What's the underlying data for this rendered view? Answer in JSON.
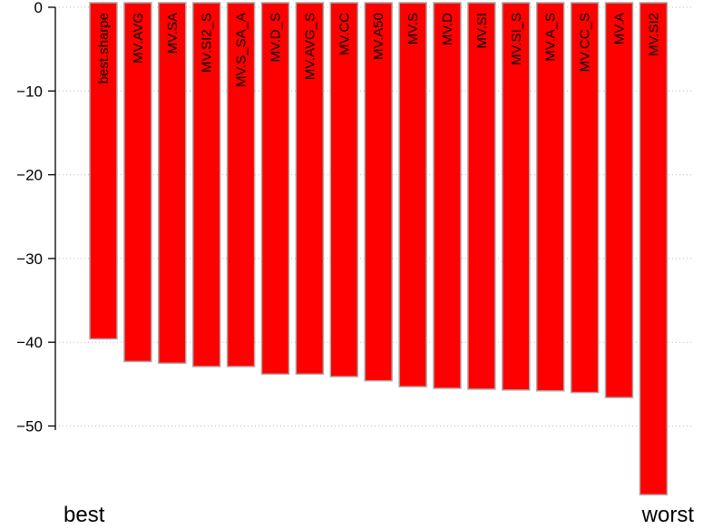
{
  "chart_data": {
    "type": "bar",
    "orientation": "vertical",
    "categories": [
      "best.sharpe",
      "MV.AVG",
      "MV.SA",
      "MV.SI2_S",
      "MV.S_SA_A",
      "MV.D_S",
      "MV.AVG_S",
      "MV.CC",
      "MV.A50",
      "MV.S",
      "MV.D",
      "MV.SI",
      "MV.SI_S",
      "MV.A_S",
      "MV.CC_S",
      "MV.A",
      "MV.SI2"
    ],
    "values": [
      -39.6,
      -42.3,
      -42.5,
      -42.9,
      -42.9,
      -43.8,
      -43.8,
      -44.1,
      -44.6,
      -45.3,
      -45.5,
      -45.6,
      -45.7,
      -45.8,
      -46.0,
      -46.6,
      -58.2
    ],
    "ylim": [
      -59,
      0
    ],
    "y_ticks": [
      0,
      -10,
      -20,
      -30,
      -40,
      -50
    ],
    "grid": "horizontal dotted",
    "colors": {
      "bar_fill": "#ff0000",
      "bar_stroke": "#a9a9a9",
      "grid": "#bbbbbb"
    },
    "start_label": "best",
    "end_label": "worst"
  }
}
